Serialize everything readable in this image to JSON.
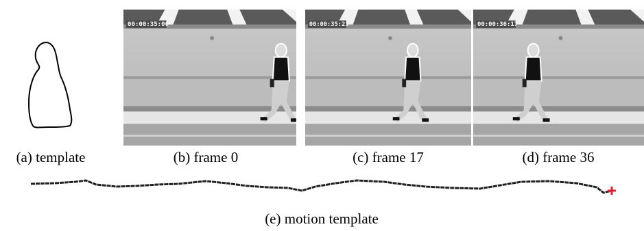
{
  "panels": [
    {
      "caption": "(a) template"
    },
    {
      "caption": "(b) frame 0",
      "timestamp": "00:00:35:06"
    },
    {
      "caption": "(c) frame 17",
      "timestamp": "00:00:35:23"
    },
    {
      "caption": "(d) frame 36",
      "timestamp": "00:00:36:17"
    }
  ],
  "motion": {
    "caption": "(e) motion template"
  }
}
